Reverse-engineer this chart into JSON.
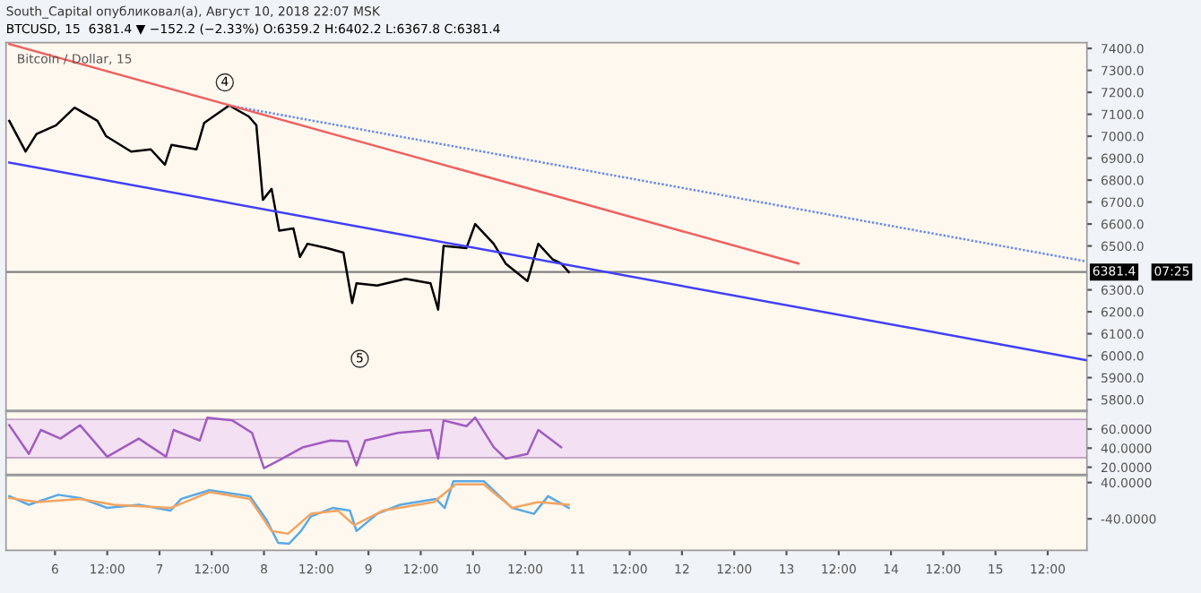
{
  "chart_data": [
    {
      "type": "line",
      "title": "Bitcoin / Dollar, 15",
      "annotations": [
        "South_Capital опубликовал(а), Август 10, 2018 22:07 MSK",
        "BTCUSD, 15  6381.4 ▼ −152.2 (−2.33%) O:6359.2 H:6402.2 L:6367.8 C:6381.4",
        {
          "text": "4",
          "x": "2018-08-07T15:00",
          "y": 7245
        },
        {
          "text": "5",
          "x": "2018-08-08T22:00",
          "y": 5986
        },
        "07:25"
      ],
      "series": [
        {
          "color": "#000000",
          "x": [
            "2018-08-05T13:30",
            "2018-08-05T17:15",
            "2018-08-05T19:45",
            "2018-08-06T00:15",
            "2018-08-06T04:30",
            "2018-08-06T09:45",
            "2018-08-06T11:45",
            "2018-08-06T17:30",
            "2018-08-06T22:00",
            "2018-08-07T01:15",
            "2018-08-07T02:45",
            "2018-08-07T08:30",
            "2018-08-07T10:15",
            "2018-08-07T16:00",
            "2018-08-07T20:30",
            "2018-08-07T22:15",
            "2018-08-07T23:45",
            "2018-08-08T01:45",
            "2018-08-08T03:30",
            "2018-08-08T06:45",
            "2018-08-08T08:15",
            "2018-08-08T10:00",
            "2018-08-08T14:30",
            "2018-08-08T18:15",
            "2018-08-08T20:15",
            "2018-08-08T21:15",
            "2018-08-09T02:00",
            "2018-08-09T08:30",
            "2018-08-09T14:15",
            "2018-08-09T16:00",
            "2018-08-09T17:15",
            "2018-08-09T22:30",
            "2018-08-10T00:30",
            "2018-08-10T04:45",
            "2018-08-10T07:30",
            "2018-08-10T12:30",
            "2018-08-10T15:00",
            "2018-08-10T18:15",
            "2018-08-10T20:15",
            "2018-08-10T22:00"
          ],
          "values": [
            7070,
            6930,
            7010,
            7050,
            7130,
            7070,
            7000,
            6930,
            6940,
            6870,
            6960,
            6940,
            7060,
            7140,
            7090,
            7050,
            6710,
            6760,
            6570,
            6580,
            6450,
            6510,
            6490,
            6470,
            6240,
            6330,
            6320,
            6350,
            6330,
            6210,
            6500,
            6490,
            6600,
            6510,
            6420,
            6340,
            6510,
            6440,
            6420,
            6381.4
          ]
        },
        {
          "color": "#3f3fff",
          "x": [
            "2018-08-05T13:30",
            "2018-08-15T20:45"
          ],
          "values": [
            6880,
            5980
          ]
        },
        {
          "color": "#6a8ee8",
          "line_style": "dotted",
          "x": [
            "2018-08-07T16:00",
            "2018-08-15T20:45"
          ],
          "values": [
            7140,
            6430
          ]
        },
        {
          "color": "#f06060",
          "x": [
            "2018-08-05T13:30",
            "2018-08-13T02:45"
          ],
          "values": [
            7420,
            6420
          ]
        }
      ],
      "xlim": [
        "2018-08-05T12:45",
        "2018-08-15T21:00"
      ],
      "ylim": [
        5751,
        7426
      ],
      "yticks": [
        {
          "value": 5800,
          "label": "5800.0"
        },
        {
          "value": 5900,
          "label": "5900.0"
        },
        {
          "value": 6000,
          "label": "6000.0"
        },
        {
          "value": 6100,
          "label": "6100.0"
        },
        {
          "value": 6200,
          "label": "6200.0"
        },
        {
          "value": 6300,
          "label": "6300.0"
        },
        {
          "value": 6500,
          "label": "6500.0"
        },
        {
          "value": 6600,
          "label": "6600.0"
        },
        {
          "value": 6700,
          "label": "6700.0"
        },
        {
          "value": 6800,
          "label": "6800.0"
        },
        {
          "value": 6900,
          "label": "6900.0"
        },
        {
          "value": 7000,
          "label": "7000.0"
        },
        {
          "value": 7100,
          "label": "7100.0"
        },
        {
          "value": 7200,
          "label": "7200.0"
        },
        {
          "value": 7300,
          "label": "7300.0"
        },
        {
          "value": 7400,
          "label": "7400.0"
        }
      ],
      "ref_lines": [
        {
          "axis": "y",
          "value": 6381.4,
          "label": "6381.4",
          "color": "#808080"
        }
      ],
      "tick_labels": "y"
    },
    {
      "type": "line",
      "series": [
        {
          "color": "#a05cc0",
          "x": [
            "2018-08-05T13:30",
            "2018-08-05T18:00",
            "2018-08-05T20:45",
            "2018-08-06T01:15",
            "2018-08-06T05:45",
            "2018-08-06T12:00",
            "2018-08-06T19:15",
            "2018-08-07T01:30",
            "2018-08-07T03:15",
            "2018-08-07T09:15",
            "2018-08-07T11:00",
            "2018-08-07T16:45",
            "2018-08-07T21:15",
            "2018-08-08T00:00",
            "2018-08-08T03:45",
            "2018-08-08T09:00",
            "2018-08-08T15:15",
            "2018-08-08T19:15",
            "2018-08-08T21:15",
            "2018-08-08T23:15",
            "2018-08-09T06:45",
            "2018-08-09T14:15",
            "2018-08-09T16:00",
            "2018-08-09T17:15",
            "2018-08-09T22:30",
            "2018-08-10T00:30",
            "2018-08-10T04:45",
            "2018-08-10T07:30",
            "2018-08-10T12:30",
            "2018-08-10T15:00",
            "2018-08-10T20:15"
          ],
          "values": [
            64,
            34,
            59,
            50,
            64,
            31,
            50,
            31,
            59,
            48,
            72,
            69,
            56,
            19,
            28,
            41,
            48,
            47,
            22,
            48,
            56,
            59,
            29,
            69,
            63,
            72,
            41,
            29,
            34,
            59,
            41
          ]
        }
      ],
      "xlim": [
        "2018-08-05T12:45",
        "2018-08-15T21:00"
      ],
      "ylim": [
        12.5,
        78.3
      ],
      "yticks": [
        {
          "value": 20,
          "label": "20.0000"
        },
        {
          "value": 40,
          "label": "40.0000"
        },
        {
          "value": 60,
          "label": "60.0000"
        }
      ],
      "bands": [
        {
          "axis": "y",
          "from": 30,
          "to": 70,
          "color": "#f3e0f3"
        }
      ],
      "tick_labels": "y"
    },
    {
      "type": "line",
      "series": [
        {
          "color": "#5aa9e6",
          "x": [
            "2018-08-05T13:30",
            "2018-08-05T18:00",
            "2018-08-06T00:45",
            "2018-08-06T05:45",
            "2018-08-06T12:00",
            "2018-08-06T19:15",
            "2018-08-07T02:30",
            "2018-08-07T05:00",
            "2018-08-07T11:30",
            "2018-08-07T20:45",
            "2018-08-08T00:30",
            "2018-08-08T03:15",
            "2018-08-08T05:45",
            "2018-08-08T08:30",
            "2018-08-08T10:45",
            "2018-08-08T15:45",
            "2018-08-08T19:45",
            "2018-08-08T21:15",
            "2018-08-09T02:00",
            "2018-08-09T07:15",
            "2018-08-09T15:30",
            "2018-08-09T17:30",
            "2018-08-09T19:30",
            "2018-08-10T02:30",
            "2018-08-10T09:00",
            "2018-08-10T14:00",
            "2018-08-10T17:15",
            "2018-08-10T22:00"
          ],
          "values": [
            10,
            -9,
            13,
            6,
            -16,
            -9,
            -22,
            4,
            23,
            10,
            -41,
            -93,
            -95,
            -67,
            -35,
            -16,
            -22,
            -67,
            -29,
            -9,
            4,
            -16,
            43,
            43,
            -16,
            -29,
            10,
            -16
          ]
        },
        {
          "color": "#f4a460",
          "x": [
            "2018-08-05T13:30",
            "2018-08-05T20:00",
            "2018-08-06T05:45",
            "2018-08-06T13:30",
            "2018-08-07T02:30",
            "2018-08-07T11:30",
            "2018-08-07T20:45",
            "2018-08-08T01:45",
            "2018-08-08T05:30",
            "2018-08-08T10:45",
            "2018-08-08T17:00",
            "2018-08-08T20:45",
            "2018-08-09T03:15",
            "2018-08-09T15:00",
            "2018-08-09T20:00",
            "2018-08-10T02:30",
            "2018-08-10T09:00",
            "2018-08-10T15:00",
            "2018-08-10T22:00"
          ],
          "values": [
            6,
            -3,
            4,
            -9,
            -16,
            19,
            4,
            -67,
            -73,
            -29,
            -22,
            -54,
            -22,
            -3,
            36,
            36,
            -16,
            -3,
            -9
          ]
        }
      ],
      "xlim": [
        "2018-08-05T12:45",
        "2018-08-15T21:00"
      ],
      "ylim": [
        -109.5,
        55.4
      ],
      "yticks": [
        {
          "value": -40,
          "label": "-40.0000"
        },
        {
          "value": 40,
          "label": "40.0000"
        }
      ],
      "xticks": [
        {
          "value": "2018-08-06",
          "label": "6"
        },
        {
          "value": "2018-08-06T12:00",
          "label": "12:00"
        },
        {
          "value": "2018-08-07",
          "label": "7"
        },
        {
          "value": "2018-08-07T12:00",
          "label": "12:00"
        },
        {
          "value": "2018-08-08",
          "label": "8"
        },
        {
          "value": "2018-08-08T12:00",
          "label": "12:00"
        },
        {
          "value": "2018-08-09",
          "label": "9"
        },
        {
          "value": "2018-08-09T12:00",
          "label": "12:00"
        },
        {
          "value": "2018-08-10",
          "label": "10"
        },
        {
          "value": "2018-08-10T12:00",
          "label": "12:00"
        },
        {
          "value": "2018-08-11",
          "label": "11"
        },
        {
          "value": "2018-08-11T12:00",
          "label": "12:00"
        },
        {
          "value": "2018-08-12",
          "label": "12"
        },
        {
          "value": "2018-08-12T12:00",
          "label": "12:00"
        },
        {
          "value": "2018-08-13",
          "label": "13"
        },
        {
          "value": "2018-08-13T12:00",
          "label": "12:00"
        },
        {
          "value": "2018-08-14",
          "label": "14"
        },
        {
          "value": "2018-08-14T12:00",
          "label": "12:00"
        },
        {
          "value": "2018-08-15",
          "label": "15"
        },
        {
          "value": "2018-08-15T12:00",
          "label": "12:00"
        }
      ]
    }
  ]
}
